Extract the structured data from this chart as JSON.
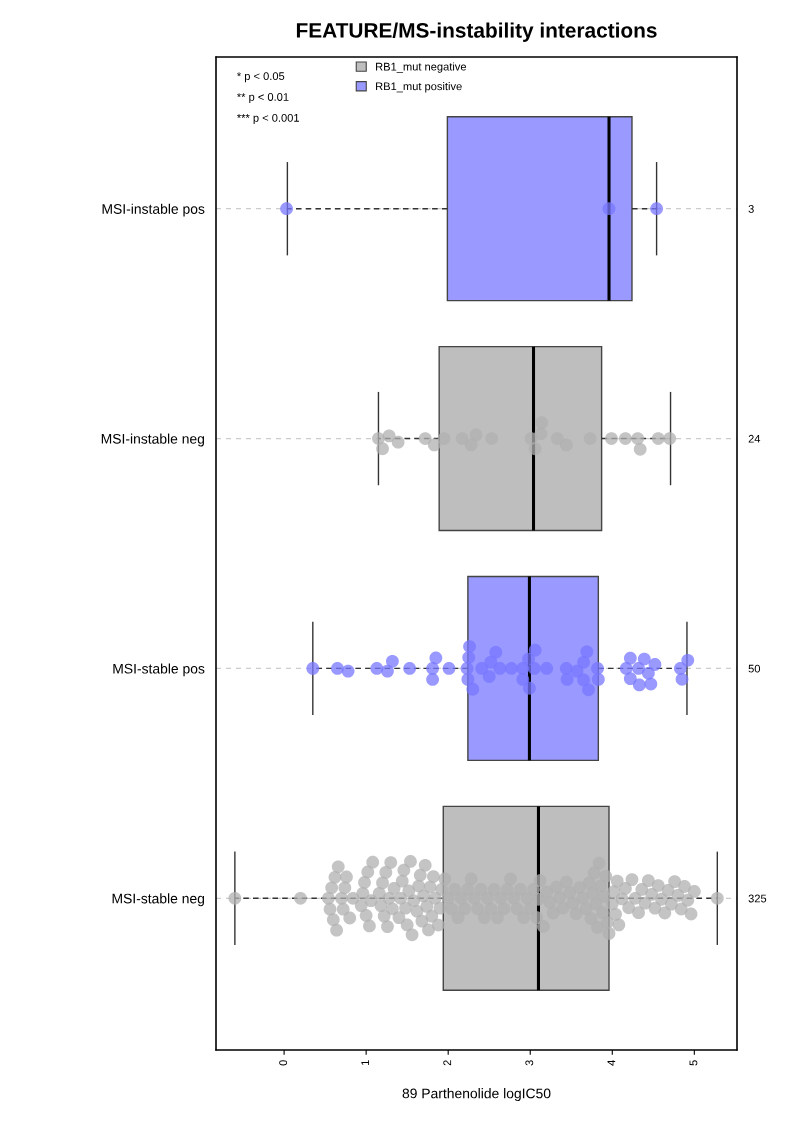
{
  "chart_data": {
    "type": "box",
    "orientation": "horizontal",
    "title": "FEATURE/MS-instability interactions",
    "xlabel": "89 Parthenolide logIC50",
    "categories": [
      "MSI-instable pos",
      "MSI-instable neg",
      "MSI-stable pos",
      "MSI-stable neg"
    ],
    "y2_categories": [
      "3",
      "24",
      "50",
      "325"
    ],
    "xlim": [
      -0.83,
      5.52
    ],
    "xticks": [
      0,
      1,
      2,
      3,
      4,
      5
    ],
    "grid": "y",
    "legend": "top left",
    "marker": "circle",
    "annotations": [
      "* p < 0.05",
      "** p < 0.01",
      "*** p < 0.001"
    ],
    "series": [
      {
        "name": "RB1_mut negative",
        "color": "#bebebe",
        "boxes": [
          null,
          {
            "low": 1.15,
            "q1": 1.89,
            "median": 3.04,
            "q3": 3.87,
            "high": 4.71
          },
          null,
          {
            "low": -0.6,
            "q1": 1.94,
            "median": 3.1,
            "q3": 3.96,
            "high": 5.28
          }
        ]
      },
      {
        "name": "RB1_mut positive",
        "color": "#9999ff",
        "boxes": [
          {
            "low": 0.04,
            "q1": 1.99,
            "median": 3.96,
            "q3": 4.24,
            "high": 4.54
          },
          null,
          {
            "low": 0.35,
            "q1": 2.24,
            "median": 2.99,
            "q3": 3.83,
            "high": 4.91
          },
          null
        ]
      },
      {
        "type": "scatter",
        "color": "#7777ff",
        "x": [
          "MSI-instable pos",
          "MSI-instable pos",
          "MSI-instable pos"
        ],
        "values": [
          0.03,
          3.96,
          4.54
        ]
      },
      {
        "type": "scatter",
        "color": "#b0b0b0",
        "x": [
          "MSI-instable neg",
          "MSI-instable neg",
          "MSI-instable neg",
          "MSI-instable neg",
          "MSI-instable neg",
          "MSI-instable neg",
          "MSI-instable neg",
          "MSI-instable neg",
          "MSI-instable neg",
          "MSI-instable neg",
          "MSI-instable neg",
          "MSI-instable neg",
          "MSI-instable neg",
          "MSI-instable neg",
          "MSI-instable neg",
          "MSI-instable neg",
          "MSI-instable neg",
          "MSI-instable neg",
          "MSI-instable neg",
          "MSI-instable neg",
          "MSI-instable neg",
          "MSI-instable neg",
          "MSI-instable neg",
          "MSI-instable neg"
        ],
        "values": [
          1.15,
          1.2,
          1.28,
          1.39,
          1.72,
          1.83,
          1.95,
          2.17,
          2.28,
          2.34,
          2.53,
          3.01,
          3.06,
          3.13,
          3.14,
          3.33,
          3.44,
          3.73,
          3.99,
          4.16,
          4.31,
          4.34,
          4.56,
          4.7
        ]
      },
      {
        "type": "scatter",
        "color": "#7777ff",
        "x": [
          "MSI-stable pos",
          "MSI-stable pos",
          "MSI-stable pos",
          "MSI-stable pos",
          "MSI-stable pos",
          "MSI-stable pos",
          "MSI-stable pos",
          "MSI-stable pos",
          "MSI-stable pos",
          "MSI-stable pos",
          "MSI-stable pos",
          "MSI-stable pos",
          "MSI-stable pos",
          "MSI-stable pos",
          "MSI-stable pos",
          "MSI-stable pos",
          "MSI-stable pos",
          "MSI-stable pos",
          "MSI-stable pos",
          "MSI-stable pos",
          "MSI-stable pos",
          "MSI-stable pos",
          "MSI-stable pos",
          "MSI-stable pos",
          "MSI-stable pos",
          "MSI-stable pos",
          "MSI-stable pos",
          "MSI-stable pos",
          "MSI-stable pos",
          "MSI-stable pos",
          "MSI-stable pos",
          "MSI-stable pos",
          "MSI-stable pos",
          "MSI-stable pos",
          "MSI-stable pos",
          "MSI-stable pos",
          "MSI-stable pos",
          "MSI-stable pos",
          "MSI-stable pos",
          "MSI-stable pos",
          "MSI-stable pos",
          "MSI-stable pos",
          "MSI-stable pos",
          "MSI-stable pos",
          "MSI-stable pos",
          "MSI-stable pos",
          "MSI-stable pos",
          "MSI-stable pos",
          "MSI-stable pos",
          "MSI-stable pos"
        ],
        "values": [
          0.35,
          0.65,
          0.78,
          1.13,
          1.26,
          1.32,
          1.53,
          1.81,
          1.81,
          1.85,
          2.01,
          2.24,
          2.23,
          2.25,
          2.26,
          2.3,
          2.41,
          2.5,
          2.52,
          2.58,
          2.63,
          2.77,
          2.91,
          2.91,
          2.98,
          2.99,
          3.05,
          3.06,
          3.2,
          3.44,
          3.45,
          3.57,
          3.65,
          3.65,
          3.69,
          3.71,
          3.82,
          3.83,
          4.17,
          4.22,
          4.22,
          4.32,
          4.33,
          4.39,
          4.44,
          4.47,
          4.52,
          4.83,
          4.85,
          4.92
        ]
      },
      {
        "type": "scatter",
        "color": "#b0b0b0",
        "x": [
          "MSI-stable neg",
          "MSI-stable neg",
          "MSI-stable neg",
          "MSI-stable neg",
          "MSI-stable neg",
          "MSI-stable neg",
          "MSI-stable neg",
          "MSI-stable neg",
          "MSI-stable neg",
          "MSI-stable neg",
          "MSI-stable neg",
          "MSI-stable neg",
          "MSI-stable neg",
          "MSI-stable neg",
          "MSI-stable neg",
          "MSI-stable neg",
          "MSI-stable neg",
          "MSI-stable neg",
          "MSI-stable neg",
          "MSI-stable neg",
          "MSI-stable neg",
          "MSI-stable neg",
          "MSI-stable neg",
          "MSI-stable neg",
          "MSI-stable neg",
          "MSI-stable neg",
          "MSI-stable neg",
          "MSI-stable neg",
          "MSI-stable neg",
          "MSI-stable neg",
          "MSI-stable neg",
          "MSI-stable neg",
          "MSI-stable neg",
          "MSI-stable neg",
          "MSI-stable neg",
          "MSI-stable neg",
          "MSI-stable neg",
          "MSI-stable neg",
          "MSI-stable neg",
          "MSI-stable neg",
          "MSI-stable neg",
          "MSI-stable neg",
          "MSI-stable neg",
          "MSI-stable neg",
          "MSI-stable neg",
          "MSI-stable neg",
          "MSI-stable neg",
          "MSI-stable neg",
          "MSI-stable neg",
          "MSI-stable neg",
          "MSI-stable neg",
          "MSI-stable neg",
          "MSI-stable neg",
          "MSI-stable neg",
          "MSI-stable neg",
          "MSI-stable neg",
          "MSI-stable neg",
          "MSI-stable neg",
          "MSI-stable neg",
          "MSI-stable neg",
          "MSI-stable neg",
          "MSI-stable neg",
          "MSI-stable neg",
          "MSI-stable neg",
          "MSI-stable neg",
          "MSI-stable neg",
          "MSI-stable neg",
          "MSI-stable neg",
          "MSI-stable neg",
          "MSI-stable neg",
          "MSI-stable neg",
          "MSI-stable neg",
          "MSI-stable neg",
          "MSI-stable neg",
          "MSI-stable neg",
          "MSI-stable neg",
          "MSI-stable neg",
          "MSI-stable neg",
          "MSI-stable neg",
          "MSI-stable neg",
          "MSI-stable neg",
          "MSI-stable neg",
          "MSI-stable neg",
          "MSI-stable neg",
          "MSI-stable neg",
          "MSI-stable neg",
          "MSI-stable neg",
          "MSI-stable neg",
          "MSI-stable neg",
          "MSI-stable neg",
          "MSI-stable neg",
          "MSI-stable neg",
          "MSI-stable neg",
          "MSI-stable neg",
          "MSI-stable neg",
          "MSI-stable neg",
          "MSI-stable neg",
          "MSI-stable neg",
          "MSI-stable neg",
          "MSI-stable neg",
          "MSI-stable neg",
          "MSI-stable neg",
          "MSI-stable neg",
          "MSI-stable neg",
          "MSI-stable neg",
          "MSI-stable neg",
          "MSI-stable neg",
          "MSI-stable neg",
          "MSI-stable neg",
          "MSI-stable neg",
          "MSI-stable neg",
          "MSI-stable neg",
          "MSI-stable neg",
          "MSI-stable neg",
          "MSI-stable neg",
          "MSI-stable neg",
          "MSI-stable neg",
          "MSI-stable neg",
          "MSI-stable neg",
          "MSI-stable neg",
          "MSI-stable neg",
          "MSI-stable neg",
          "MSI-stable neg",
          "MSI-stable neg",
          "MSI-stable neg",
          "MSI-stable neg",
          "MSI-stable neg",
          "MSI-stable neg",
          "MSI-stable neg",
          "MSI-stable neg",
          "MSI-stable neg",
          "MSI-stable neg",
          "MSI-stable neg",
          "MSI-stable neg",
          "MSI-stable neg",
          "MSI-stable neg",
          "MSI-stable neg",
          "MSI-stable neg",
          "MSI-stable neg",
          "MSI-stable neg",
          "MSI-stable neg",
          "MSI-stable neg",
          "MSI-stable neg",
          "MSI-stable neg",
          "MSI-stable neg"
        ],
        "values": [
          -0.6,
          0.2,
          0.54,
          0.56,
          0.58,
          0.6,
          0.62,
          0.64,
          0.66,
          0.7,
          0.72,
          0.74,
          0.76,
          0.8,
          0.84,
          0.94,
          0.96,
          0.98,
          1.0,
          1.02,
          1.04,
          1.06,
          1.08,
          1.16,
          1.18,
          1.2,
          1.22,
          1.24,
          1.26,
          1.28,
          1.3,
          1.32,
          1.34,
          1.4,
          1.42,
          1.44,
          1.46,
          1.48,
          1.5,
          1.52,
          1.54,
          1.56,
          1.58,
          1.62,
          1.64,
          1.66,
          1.68,
          1.7,
          1.72,
          1.74,
          1.76,
          1.78,
          1.8,
          1.82,
          1.84,
          1.88,
          1.9,
          1.92,
          1.96,
          2.0,
          2.04,
          2.08,
          2.12,
          2.16,
          2.2,
          2.24,
          2.28,
          2.32,
          2.36,
          2.4,
          2.44,
          2.48,
          2.52,
          2.56,
          2.6,
          2.64,
          2.68,
          2.72,
          2.76,
          2.8,
          2.84,
          2.88,
          2.92,
          2.96,
          3.0,
          3.04,
          3.08,
          3.1,
          3.12,
          3.16,
          3.2,
          3.24,
          3.28,
          3.32,
          3.36,
          3.4,
          3.44,
          3.48,
          3.52,
          3.56,
          3.6,
          3.64,
          3.68,
          3.72,
          3.74,
          3.76,
          3.78,
          3.8,
          3.82,
          3.84,
          3.86,
          3.88,
          3.9,
          3.92,
          3.94,
          3.96,
          4.0,
          4.02,
          4.04,
          4.06,
          4.08,
          4.12,
          4.16,
          4.2,
          4.24,
          4.28,
          4.32,
          4.36,
          4.4,
          4.44,
          4.48,
          4.52,
          4.56,
          4.6,
          4.64,
          4.68,
          4.72,
          4.76,
          4.8,
          4.84,
          4.88,
          4.92,
          4.96,
          5.0,
          5.28
        ]
      }
    ]
  }
}
